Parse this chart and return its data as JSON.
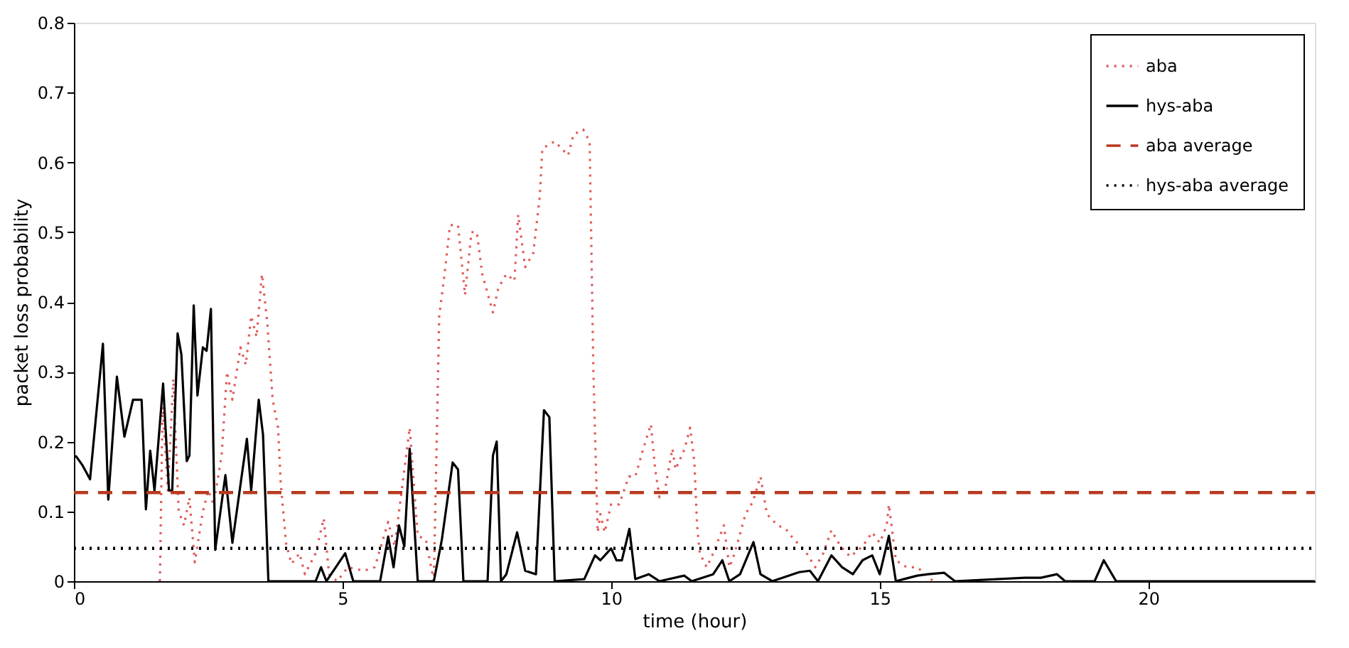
{
  "chart_data": {
    "type": "line",
    "xlabel": "time (hour)",
    "ylabel": "packet loss probability",
    "xlim": [
      0,
      23.1
    ],
    "xticks": [
      0,
      5,
      10,
      15,
      20
    ],
    "ylim": [
      0,
      0.8
    ],
    "yticks": [
      0,
      0.1,
      0.2,
      0.3,
      0.4,
      0.5,
      0.6,
      0.7,
      0.8
    ],
    "grid": false,
    "legend": "top right",
    "marker": "none",
    "series": [
      {
        "name": "aba",
        "color": "#e05a5a",
        "line_style": "dotted",
        "x": [
          1.6,
          1.65,
          1.75,
          1.85,
          1.95,
          2.05,
          2.15,
          2.25,
          2.4,
          2.5,
          2.6,
          2.75,
          2.85,
          2.95,
          3.1,
          3.2,
          3.3,
          3.4,
          3.5,
          3.6,
          3.7,
          3.8,
          3.85,
          3.95,
          4.05,
          4.2,
          4.3,
          4.5,
          4.65,
          4.75,
          4.9,
          5.1,
          5.4,
          5.6,
          5.85,
          5.97,
          6.25,
          6.4,
          6.55,
          6.7,
          6.8,
          6.9,
          7.0,
          7.15,
          7.28,
          7.4,
          7.5,
          7.6,
          7.8,
          7.9,
          8.05,
          8.2,
          8.27,
          8.4,
          8.55,
          8.67,
          8.72,
          8.95,
          9.2,
          9.3,
          9.48,
          9.6,
          9.67,
          9.75,
          9.8,
          9.88,
          10.0,
          10.15,
          10.33,
          10.45,
          10.6,
          10.74,
          10.82,
          10.9,
          11.0,
          11.14,
          11.2,
          11.37,
          11.47,
          11.55,
          11.6,
          11.65,
          11.78,
          11.9,
          12.1,
          12.2,
          12.3,
          12.5,
          12.64,
          12.78,
          12.9,
          13.1,
          13.25,
          13.4,
          13.6,
          13.8,
          13.95,
          14.1,
          14.27,
          14.45,
          14.68,
          14.86,
          15.0,
          15.13,
          15.17,
          15.3,
          15.5,
          15.7,
          16.0
        ],
        "values": [
          0.0,
          0.25,
          0.13,
          0.29,
          0.1,
          0.08,
          0.12,
          0.027,
          0.1,
          0.13,
          0.11,
          0.18,
          0.3,
          0.26,
          0.335,
          0.31,
          0.38,
          0.35,
          0.44,
          0.37,
          0.26,
          0.22,
          0.14,
          0.054,
          0.025,
          0.04,
          0.01,
          0.04,
          0.09,
          0.01,
          0.0,
          0.02,
          0.015,
          0.02,
          0.085,
          0.05,
          0.22,
          0.065,
          0.06,
          0.0,
          0.38,
          0.44,
          0.51,
          0.51,
          0.41,
          0.5,
          0.5,
          0.44,
          0.385,
          0.42,
          0.44,
          0.43,
          0.525,
          0.45,
          0.47,
          0.55,
          0.62,
          0.63,
          0.61,
          0.64,
          0.647,
          0.63,
          0.3,
          0.07,
          0.096,
          0.07,
          0.11,
          0.11,
          0.15,
          0.15,
          0.19,
          0.225,
          0.16,
          0.12,
          0.13,
          0.19,
          0.16,
          0.19,
          0.22,
          0.17,
          0.08,
          0.04,
          0.02,
          0.04,
          0.08,
          0.02,
          0.04,
          0.096,
          0.114,
          0.15,
          0.096,
          0.08,
          0.075,
          0.06,
          0.045,
          0.02,
          0.04,
          0.073,
          0.05,
          0.035,
          0.05,
          0.07,
          0.055,
          0.08,
          0.11,
          0.03,
          0.02,
          0.02,
          0.0
        ]
      },
      {
        "name": "hys-aba",
        "color": "#000000",
        "line_style": "solid",
        "x": [
          0.03,
          0.16,
          0.3,
          0.54,
          0.64,
          0.8,
          0.94,
          1.1,
          1.26,
          1.34,
          1.42,
          1.5,
          1.66,
          1.77,
          1.83,
          1.93,
          2.0,
          2.1,
          2.15,
          2.23,
          2.3,
          2.4,
          2.47,
          2.55,
          2.63,
          2.82,
          2.95,
          3.08,
          3.22,
          3.3,
          3.44,
          3.52,
          3.62,
          4.5,
          4.6,
          4.7,
          5.05,
          5.2,
          5.7,
          5.85,
          5.95,
          6.05,
          6.15,
          6.25,
          6.4,
          6.7,
          6.85,
          7.05,
          7.15,
          7.25,
          7.7,
          7.8,
          7.87,
          7.95,
          8.05,
          8.25,
          8.4,
          8.6,
          8.75,
          8.85,
          8.95,
          9.5,
          9.7,
          9.8,
          10.0,
          10.1,
          10.2,
          10.34,
          10.45,
          10.7,
          10.9,
          11.36,
          11.5,
          11.9,
          12.07,
          12.2,
          12.4,
          12.65,
          12.78,
          13.0,
          13.5,
          13.7,
          13.85,
          14.1,
          14.3,
          14.5,
          14.68,
          14.86,
          15.0,
          15.17,
          15.3,
          15.7,
          15.9,
          16.2,
          16.4,
          17.7,
          18.0,
          18.3,
          18.45,
          19.0,
          19.17,
          19.4,
          23.1
        ],
        "values": [
          0.18,
          0.166,
          0.146,
          0.34,
          0.117,
          0.293,
          0.207,
          0.26,
          0.26,
          0.103,
          0.187,
          0.13,
          0.283,
          0.13,
          0.13,
          0.355,
          0.325,
          0.172,
          0.18,
          0.395,
          0.266,
          0.335,
          0.33,
          0.39,
          0.045,
          0.152,
          0.055,
          0.127,
          0.204,
          0.13,
          0.26,
          0.21,
          0.0,
          0.0,
          0.02,
          0.0,
          0.04,
          0.0,
          0.0,
          0.064,
          0.02,
          0.08,
          0.05,
          0.19,
          0.0,
          0.0,
          0.06,
          0.17,
          0.16,
          0.0,
          0.0,
          0.18,
          0.2,
          0.0,
          0.01,
          0.07,
          0.015,
          0.01,
          0.245,
          0.235,
          0.0,
          0.003,
          0.037,
          0.03,
          0.047,
          0.03,
          0.03,
          0.075,
          0.003,
          0.01,
          0.0,
          0.008,
          0.0,
          0.01,
          0.03,
          0.0,
          0.01,
          0.056,
          0.01,
          0.0,
          0.013,
          0.015,
          0.0,
          0.037,
          0.02,
          0.01,
          0.03,
          0.037,
          0.01,
          0.065,
          0.0,
          0.008,
          0.01,
          0.012,
          0.0,
          0.005,
          0.005,
          0.01,
          0.0,
          0.0,
          0.03,
          0.0,
          0.0
        ]
      }
    ],
    "ref_lines": [
      {
        "axis": "y",
        "value": 0.127,
        "label": "aba average",
        "color": "#b8391f",
        "line_style": "dashed"
      },
      {
        "axis": "y",
        "value": 0.047,
        "label": "hys-aba average",
        "color": "#000000",
        "line_style": "dotted"
      }
    ]
  }
}
